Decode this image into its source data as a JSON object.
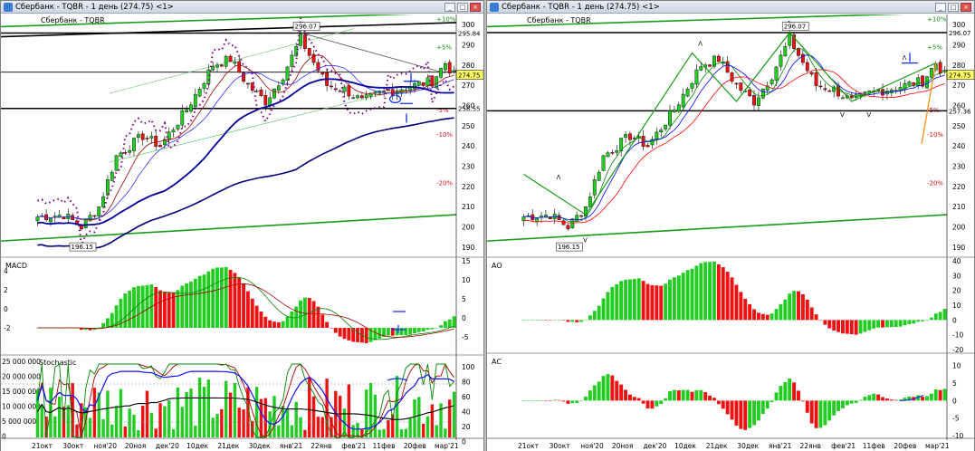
{
  "left": {
    "title": "Сбербанк - TQBR - 1 день (274.75) <1>",
    "chart_name": "Сбербанк - TQBR",
    "price_axis": [
      "300",
      "290",
      "280",
      "270",
      "260",
      "250",
      "240",
      "230",
      "220",
      "210",
      "200",
      "190"
    ],
    "pct_labels": [
      "+10%",
      "+5%",
      "-5%",
      "-10%",
      "-20%"
    ],
    "price_marks": {
      "high": "296.07",
      "level1": "295.84",
      "level2": "276.48",
      "last": "274.75",
      "level3": "258.55",
      "low": "196.15"
    },
    "macd": {
      "label": "MACD",
      "axis_left": [
        "4",
        "2",
        "0",
        "-2"
      ],
      "axis_right": [
        "15",
        "10",
        "5",
        "0",
        "-5"
      ]
    },
    "stoch": {
      "label": "Stochastic",
      "axis_left": [
        "25 000 000",
        "20 000 000",
        "15 000 000",
        "10 000 000",
        "5 000 000",
        "0"
      ],
      "axis_right": [
        "100",
        "80",
        "60",
        "40",
        "20",
        "0"
      ]
    },
    "dates": [
      "21окт",
      "30окт",
      "ноя'20",
      "20ноя",
      "дек'20",
      "10дек",
      "21дек",
      "30дек",
      "янв'21",
      "22янв",
      "фев'21",
      "11фев",
      "20фев",
      "мар'21"
    ]
  },
  "right": {
    "title": "Сбербанк - TQBR - 1 день (274.75) <1>",
    "chart_name": "Сбербанк - TQBR",
    "price_axis": [
      "300",
      "290",
      "280",
      "270",
      "260",
      "250",
      "240",
      "230",
      "220",
      "210",
      "200",
      "190"
    ],
    "pct_labels": [
      "+10%",
      "+5%",
      "-5%",
      "-10%",
      "-20%"
    ],
    "price_marks": {
      "high": "296.07",
      "level1": "296.07",
      "last": "274.75",
      "level3": "257.36",
      "low": "196.15"
    },
    "ao": {
      "label": "AO",
      "axis": [
        "40",
        "30",
        "20",
        "10",
        "0",
        "-10",
        "-20"
      ]
    },
    "ac": {
      "label": "AC",
      "axis": [
        "10",
        "5",
        "0",
        "-5",
        "-10"
      ]
    },
    "dates": [
      "21окт",
      "30окт",
      "ноя'20",
      "20ноя",
      "дек'20",
      "10дек",
      "21дек",
      "30дек",
      "янв'21",
      "22янв",
      "фев'21",
      "11фев",
      "20фев",
      "мар'21"
    ]
  },
  "colors": {
    "up": "#22cc22",
    "down": "#ee1111",
    "green_line": "#22aa22",
    "blue": "#1010a0",
    "purple": "#800080"
  }
}
